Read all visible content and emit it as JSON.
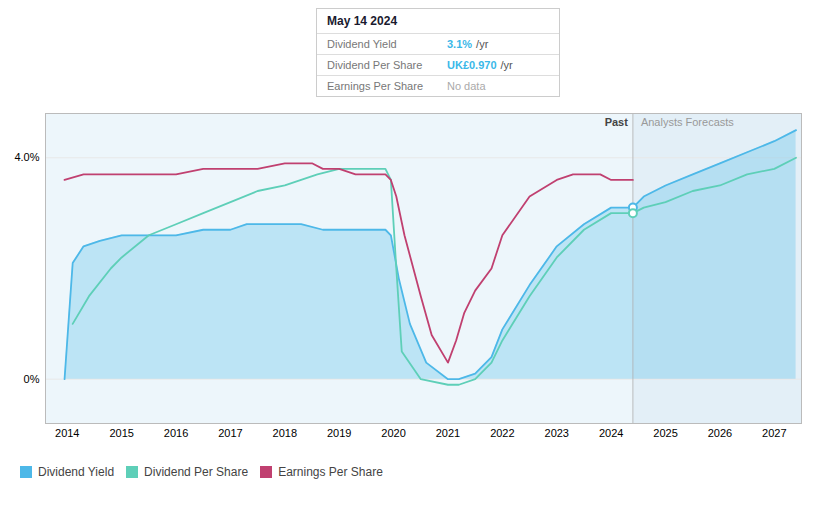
{
  "chart_data": {
    "type": "line",
    "xlim": [
      2013.6,
      2027.5
    ],
    "xticks": [
      2014,
      2015,
      2016,
      2017,
      2018,
      2019,
      2020,
      2021,
      2022,
      2023,
      2024,
      2025,
      2026,
      2027
    ],
    "ylim": [
      -0.008,
      0.048
    ],
    "yticks": [
      {
        "value": 0.0,
        "label": "0%"
      },
      {
        "value": 0.04,
        "label": "4.0%"
      }
    ],
    "grid": "y",
    "legend": "bottom",
    "past_boundary": 2024.4,
    "annotations": [
      {
        "text": "Past"
      },
      {
        "text": "Analysts Forecasts"
      }
    ],
    "tooltip": {
      "title": "May 14 2024",
      "rows": [
        {
          "name": "Dividend Yield",
          "value": "3.1%",
          "unit": "/yr"
        },
        {
          "name": "Dividend Per Share",
          "value": "UK£0.970",
          "unit": "/yr"
        },
        {
          "name": "Earnings Per Share",
          "value": "No data"
        }
      ]
    },
    "series": [
      {
        "name": "Dividend Yield",
        "color": "#4db8e8",
        "type": "area",
        "x": [
          2013.95,
          2014.1,
          2014.3,
          2014.6,
          2015.0,
          2015.5,
          2016.0,
          2016.5,
          2017.0,
          2017.3,
          2017.5,
          2017.7,
          2018.0,
          2018.3,
          2018.7,
          2019.0,
          2019.3,
          2019.6,
          2019.85,
          2019.95,
          2020.1,
          2020.3,
          2020.6,
          2021.0,
          2021.2,
          2021.5,
          2021.8,
          2022.0,
          2022.5,
          2023.0,
          2023.5,
          2024.0,
          2024.4,
          2024.6,
          2025.0,
          2025.5,
          2026.0,
          2026.5,
          2027.0,
          2027.4
        ],
        "values": [
          0.0,
          0.021,
          0.024,
          0.025,
          0.026,
          0.026,
          0.026,
          0.027,
          0.027,
          0.028,
          0.028,
          0.028,
          0.028,
          0.028,
          0.027,
          0.027,
          0.027,
          0.027,
          0.027,
          0.026,
          0.018,
          0.01,
          0.003,
          0.0,
          0.0,
          0.001,
          0.004,
          0.009,
          0.017,
          0.024,
          0.028,
          0.031,
          0.031,
          0.033,
          0.035,
          0.037,
          0.039,
          0.041,
          0.043,
          0.045
        ],
        "highlight": {
          "x": 2024.4,
          "y": 0.031
        }
      },
      {
        "name": "Dividend Per Share",
        "color": "#5ecfb8",
        "type": "line",
        "x": [
          2014.1,
          2014.4,
          2014.8,
          2015.0,
          2015.5,
          2016.0,
          2016.5,
          2017.0,
          2017.5,
          2018.0,
          2018.3,
          2018.6,
          2019.0,
          2019.3,
          2019.6,
          2019.85,
          2019.95,
          2020.05,
          2020.15,
          2020.5,
          2021.0,
          2021.2,
          2021.5,
          2021.8,
          2022.0,
          2022.5,
          2023.0,
          2023.5,
          2024.0,
          2024.4,
          2024.6,
          2025.0,
          2025.5,
          2026.0,
          2026.5,
          2027.0,
          2027.4
        ],
        "values": [
          0.01,
          0.015,
          0.02,
          0.022,
          0.026,
          0.028,
          0.03,
          0.032,
          0.034,
          0.035,
          0.036,
          0.037,
          0.038,
          0.038,
          0.038,
          0.038,
          0.036,
          0.02,
          0.005,
          0.0,
          -0.001,
          -0.001,
          0.0,
          0.003,
          0.007,
          0.015,
          0.022,
          0.027,
          0.03,
          0.03,
          0.031,
          0.032,
          0.034,
          0.035,
          0.037,
          0.038,
          0.04
        ],
        "highlight": {
          "x": 2024.4,
          "y": 0.03
        }
      },
      {
        "name": "Earnings Per Share",
        "color": "#c04070",
        "type": "line",
        "x": [
          2013.95,
          2014.3,
          2015.0,
          2015.5,
          2016.0,
          2016.5,
          2017.0,
          2017.5,
          2018.0,
          2018.2,
          2018.5,
          2018.7,
          2019.0,
          2019.3,
          2019.6,
          2019.85,
          2019.95,
          2020.05,
          2020.2,
          2020.5,
          2020.7,
          2021.0,
          2021.15,
          2021.3,
          2021.5,
          2021.8,
          2022.0,
          2022.5,
          2023.0,
          2023.3,
          2023.5,
          2023.8,
          2024.0,
          2024.4
        ],
        "values": [
          0.036,
          0.037,
          0.037,
          0.037,
          0.037,
          0.038,
          0.038,
          0.038,
          0.039,
          0.039,
          0.039,
          0.038,
          0.038,
          0.037,
          0.037,
          0.037,
          0.036,
          0.033,
          0.026,
          0.015,
          0.008,
          0.003,
          0.007,
          0.012,
          0.016,
          0.02,
          0.026,
          0.033,
          0.036,
          0.037,
          0.037,
          0.037,
          0.036,
          0.036
        ]
      }
    ]
  }
}
